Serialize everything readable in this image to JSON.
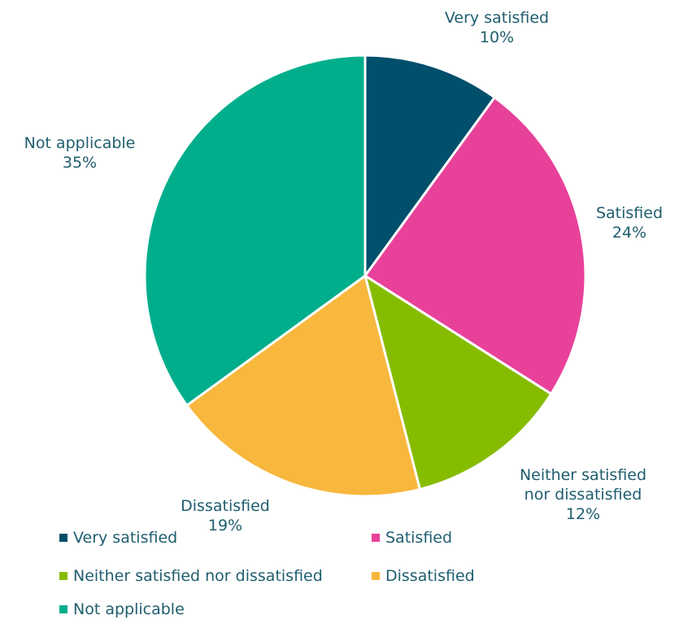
{
  "chart_data": {
    "type": "pie",
    "title": "",
    "slices": [
      {
        "label": "Very satisfied",
        "value": 10,
        "display": "10%",
        "color": "#004f6b"
      },
      {
        "label": "Satisfied",
        "value": 24,
        "display": "24%",
        "color": "#e8419a"
      },
      {
        "label": "Neither satisfied nor dissatisfied",
        "value": 12,
        "display": "12%",
        "color": "#86bc00"
      },
      {
        "label": "Dissatisfied",
        "value": 19,
        "display": "19%",
        "color": "#f8b73d"
      },
      {
        "label": "Not applicable",
        "value": 35,
        "display": "35%",
        "color": "#00ae8c"
      }
    ],
    "data_label_lines": [
      [
        "Very satisfied"
      ],
      [
        "Satisfied"
      ],
      [
        "Neither satisfied",
        "nor dissatisfied"
      ],
      [
        "Dissatisfied"
      ],
      [
        "Not applicable"
      ]
    ],
    "legend_position": "bottom",
    "label_color": "#1f5d6e"
  }
}
